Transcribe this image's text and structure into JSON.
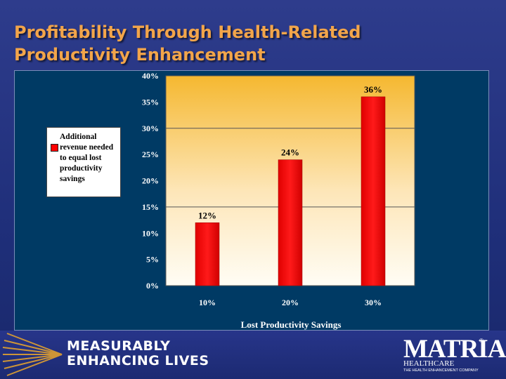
{
  "slide": {
    "title_line1": "Profitability Through Health-Related",
    "title_line2": "Productivity Enhancement"
  },
  "legend": {
    "label": "Additional revenue needed to equal lost productivity savings"
  },
  "chart_data": {
    "type": "bar",
    "categories": [
      "10%",
      "20%",
      "30%"
    ],
    "series": [
      {
        "name": "Additional revenue needed to equal lost productivity savings",
        "values": [
          12,
          24,
          36
        ],
        "labels": [
          "12%",
          "24%",
          "36%"
        ],
        "color": "#ff0000"
      }
    ],
    "yticks": [
      0,
      5,
      10,
      15,
      20,
      25,
      30,
      35,
      40
    ],
    "ytick_labels": [
      "0%",
      "5%",
      "10%",
      "15%",
      "20%",
      "25%",
      "30%",
      "35%",
      "40%"
    ],
    "ylim": [
      0,
      40
    ],
    "gridlines": [
      15,
      30
    ],
    "xlabel": "Lost Productivity Savings",
    "ylabel": "",
    "title": "",
    "legend_position": "left",
    "plot_background_top": "#f5b830",
    "plot_background_bottom": "#fffdf5"
  },
  "footer": {
    "tagline_line1": "MEASURABLY",
    "tagline_line2": "ENHANCING LIVES",
    "logo_name": "MATRIA",
    "logo_registered": "®",
    "logo_subtitle": "HEALTHCARE",
    "logo_tagline": "THE HEALTH ENHANCEMENT COMPANY"
  }
}
